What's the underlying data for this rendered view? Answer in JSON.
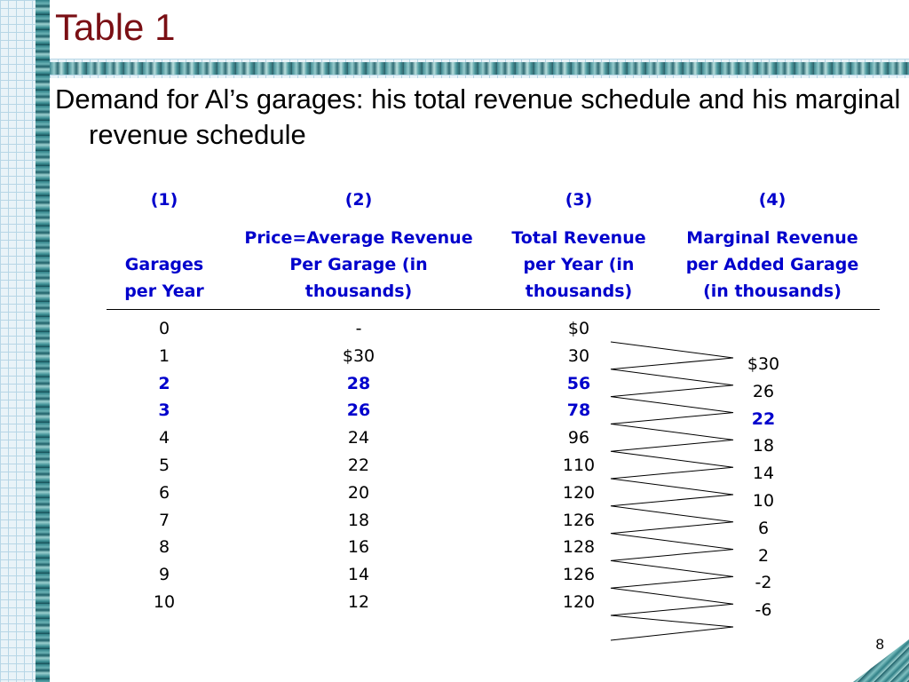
{
  "slide": {
    "title": "Table 1",
    "subtitle": "Demand for Al’s garages: his total revenue schedule and his marginal revenue schedule",
    "page_number": "8"
  },
  "table": {
    "col_numbers": [
      "(1)",
      "(2)",
      "(3)",
      "(4)"
    ],
    "col_headers": [
      [
        "Garages",
        "per Year"
      ],
      [
        "Price=Average Revenue",
        "Per Garage (in",
        "thousands)"
      ],
      [
        "Total Revenue",
        "per Year (in",
        "thousands)"
      ],
      [
        "Marginal Revenue",
        "per Added Garage",
        "(in thousands)"
      ]
    ],
    "garages": [
      "0",
      "1",
      "2",
      "3",
      "4",
      "5",
      "6",
      "7",
      "8",
      "9",
      "10"
    ],
    "price": [
      "-",
      "$30",
      "28",
      "26",
      "24",
      "22",
      "20",
      "18",
      "16",
      "14",
      "12"
    ],
    "total_revenue": [
      "$0",
      "30",
      "56",
      "78",
      "96",
      "110",
      "120",
      "126",
      "128",
      "126",
      "120"
    ],
    "marginal_revenue": [
      "$30",
      "26",
      "22",
      "18",
      "14",
      "10",
      "6",
      "2",
      "-2",
      "-6"
    ],
    "highlight_rows": [
      2,
      3
    ],
    "highlight_marginal": [
      2
    ],
    "colors": {
      "highlight": "#0000cc",
      "title": "#7a0f14"
    }
  }
}
